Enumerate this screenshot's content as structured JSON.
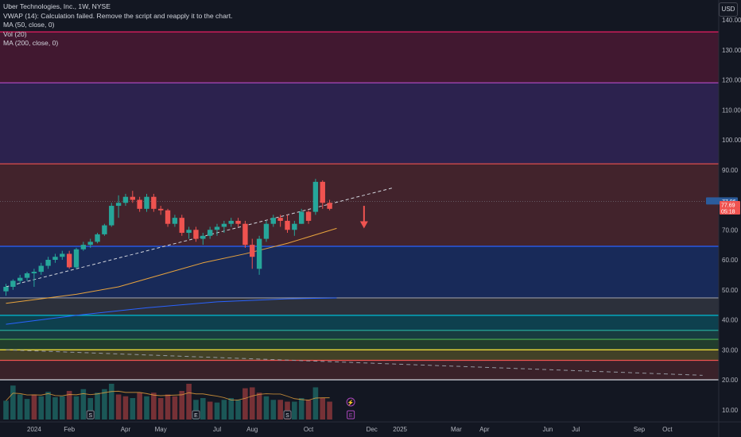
{
  "legend": {
    "symbol_line": "Uber Technologies, Inc., 1W, NYSE",
    "vwap_line": "VWAP (14): Calculation failed. Remove the script and reapply it to the chart.",
    "ma50_line": "MA (50, close, 0)",
    "vol_line": "Vol (20)",
    "ma200_line": "MA (200, close, 0)"
  },
  "currency_button": "USD",
  "colors": {
    "background": "#131722",
    "up": "#26a69a",
    "down": "#ef5350",
    "ma50": "#e8a33d",
    "ma200": "#2962ff",
    "trend": "#d1d4dc"
  },
  "chart_data": {
    "type": "candlestick",
    "y_axis": {
      "min": 5,
      "max": 145,
      "ticks": [
        10,
        20,
        30,
        40,
        50,
        60,
        70,
        80,
        90,
        100,
        110,
        120,
        130,
        140
      ],
      "tick_labels": [
        "10.00",
        "20.00",
        "30.00",
        "40.00",
        "50.00",
        "60.00",
        "70.00",
        "80.00",
        "90.00",
        "100.00",
        "110.00",
        "120.00",
        "130.00",
        "140.00"
      ]
    },
    "x_axis": {
      "labels": [
        "2024",
        "Feb",
        "Apr",
        "May",
        "Jul",
        "Aug",
        "Oct",
        "Dec",
        "2025",
        "Mar",
        "Apr",
        "Jun",
        "Jul",
        "Sep",
        "Oct"
      ],
      "label_week_index": [
        4,
        9,
        17,
        22,
        30,
        35,
        43,
        52,
        56,
        64,
        68,
        77,
        81,
        90,
        94
      ]
    },
    "candles": [
      [
        49.5,
        52,
        48,
        51
      ],
      [
        51,
        53.5,
        50,
        53
      ],
      [
        53,
        55,
        52,
        54
      ],
      [
        54,
        56,
        53,
        55.5
      ],
      [
        55.5,
        57,
        51,
        56
      ],
      [
        56,
        59,
        55,
        58
      ],
      [
        58,
        61,
        57,
        60
      ],
      [
        60,
        62,
        59,
        61
      ],
      [
        61,
        63,
        60,
        62
      ],
      [
        62,
        63,
        57,
        57.5
      ],
      [
        57.5,
        64,
        57,
        63.5
      ],
      [
        63.5,
        66,
        63,
        65
      ],
      [
        65,
        67,
        64,
        66
      ],
      [
        66,
        69,
        65.5,
        68.5
      ],
      [
        68.5,
        72,
        68,
        71.5
      ],
      [
        71.5,
        79,
        71,
        78
      ],
      [
        78,
        81.5,
        74,
        79
      ],
      [
        79,
        82,
        78,
        81
      ],
      [
        81,
        83,
        79,
        80
      ],
      [
        80,
        81,
        76,
        77
      ],
      [
        77,
        82,
        76,
        81
      ],
      [
        81,
        82,
        76,
        77
      ],
      [
        77,
        78,
        75,
        76.5
      ],
      [
        76.5,
        77,
        71,
        72
      ],
      [
        72,
        75,
        71,
        74
      ],
      [
        74,
        75,
        68,
        69
      ],
      [
        69,
        71,
        67,
        70
      ],
      [
        70,
        71,
        66,
        67
      ],
      [
        67,
        69,
        65,
        68
      ],
      [
        68,
        71,
        67,
        70
      ],
      [
        70,
        72,
        68,
        71
      ],
      [
        71,
        73,
        69,
        72
      ],
      [
        72,
        74,
        71,
        73
      ],
      [
        73,
        74,
        71,
        72
      ],
      [
        72,
        73,
        64,
        65
      ],
      [
        65,
        67,
        57,
        61
      ],
      [
        57,
        68,
        55,
        67
      ],
      [
        67,
        73,
        66,
        72
      ],
      [
        72,
        75,
        71,
        74
      ],
      [
        74,
        75,
        71,
        73
      ],
      [
        73,
        75,
        69,
        70
      ],
      [
        70,
        73,
        68,
        72
      ],
      [
        72,
        77,
        72,
        76
      ],
      [
        76,
        76.5,
        72,
        73
      ],
      [
        76,
        87,
        75,
        86
      ],
      [
        86,
        86.5,
        77,
        79
      ],
      [
        79,
        80,
        76.5,
        77
      ]
    ],
    "volume": [
      [
        10.5,
        1
      ],
      [
        19,
        1
      ],
      [
        14,
        1
      ],
      [
        11.5,
        1
      ],
      [
        14,
        0
      ],
      [
        13,
        1
      ],
      [
        15.5,
        1
      ],
      [
        12.5,
        1
      ],
      [
        13,
        1
      ],
      [
        16,
        0
      ],
      [
        13,
        1
      ],
      [
        17,
        1
      ],
      [
        12,
        1
      ],
      [
        15,
        1
      ],
      [
        17,
        1
      ],
      [
        20,
        1
      ],
      [
        14,
        0
      ],
      [
        13,
        0
      ],
      [
        12,
        1
      ],
      [
        15,
        0
      ],
      [
        13,
        1
      ],
      [
        15,
        0
      ],
      [
        12,
        0
      ],
      [
        14,
        0
      ],
      [
        13,
        0
      ],
      [
        16,
        0
      ],
      [
        20,
        0
      ],
      [
        11,
        1
      ],
      [
        12,
        1
      ],
      [
        10,
        0
      ],
      [
        9.5,
        1
      ],
      [
        11,
        1
      ],
      [
        12,
        1
      ],
      [
        11,
        1
      ],
      [
        17.5,
        0
      ],
      [
        18,
        0
      ],
      [
        15,
        0
      ],
      [
        13,
        1
      ],
      [
        11,
        1
      ],
      [
        11,
        0
      ],
      [
        10,
        0
      ],
      [
        10,
        1
      ],
      [
        12,
        1
      ],
      [
        11,
        0
      ],
      [
        18,
        1
      ],
      [
        12,
        0
      ],
      [
        10,
        0
      ]
    ],
    "vol_ma_label": "Vol (20)",
    "ma50": [
      [
        0,
        45.5
      ],
      [
        10,
        48.5
      ],
      [
        16,
        51
      ],
      [
        22,
        55
      ],
      [
        28,
        59
      ],
      [
        34,
        62
      ],
      [
        40,
        65.5
      ],
      [
        47,
        70.5
      ]
    ],
    "ma200": [
      [
        0,
        38.5
      ],
      [
        10,
        41.5
      ],
      [
        20,
        44
      ],
      [
        30,
        46
      ],
      [
        40,
        47
      ],
      [
        47,
        47.3
      ]
    ],
    "trendline": {
      "from": [
        0,
        51
      ],
      "to": [
        55,
        84
      ]
    },
    "down_trend": {
      "from": [
        0,
        30
      ],
      "to": [
        99,
        21.5
      ]
    },
    "horizontal_levels": [
      {
        "price": 136,
        "color": "#e91e63"
      },
      {
        "price": 119,
        "color": "#ab47bc"
      },
      {
        "price": 92,
        "color": "#ef5350"
      },
      {
        "price": 64.5,
        "color": "#2962ff"
      },
      {
        "price": 47.3,
        "color": "#9598a1"
      },
      {
        "price": 41.5,
        "color": "#00bcd4"
      },
      {
        "price": 36.5,
        "color": "#26a69a"
      },
      {
        "price": 33.5,
        "color": "#4caf50"
      },
      {
        "price": 30,
        "color": "#ffeb3b"
      },
      {
        "price": 26.5,
        "color": "#ef5350"
      },
      {
        "price": 20,
        "color": "#d1d4dc"
      }
    ],
    "zones": [
      {
        "top": 136,
        "bottom": 119,
        "color": "#e91e63",
        "opacity": 0.22
      },
      {
        "top": 119,
        "bottom": 92,
        "color": "#673ab7",
        "opacity": 0.3
      },
      {
        "top": 92,
        "bottom": 64.5,
        "color": "#ef5350",
        "opacity": 0.22
      },
      {
        "top": 64.5,
        "bottom": 47.3,
        "color": "#2962ff",
        "opacity": 0.25
      },
      {
        "top": 47.3,
        "bottom": 41.5,
        "color": "#787b86",
        "opacity": 0.25
      },
      {
        "top": 41.5,
        "bottom": 36.5,
        "color": "#00bcd4",
        "opacity": 0.25
      },
      {
        "top": 36.5,
        "bottom": 33.5,
        "color": "#26a69a",
        "opacity": 0.25
      },
      {
        "top": 33.5,
        "bottom": 30,
        "color": "#4caf50",
        "opacity": 0.25
      },
      {
        "top": 30,
        "bottom": 26.5,
        "color": "#ffeb3b",
        "opacity": 0.2
      },
      {
        "top": 26.5,
        "bottom": 20,
        "color": "#ef5350",
        "opacity": 0.18
      }
    ],
    "price_tags": [
      {
        "price": 79.5,
        "text": "77.96",
        "color": "#2b5c9c"
      },
      {
        "price": 76,
        "text": "77.69",
        "color": "#ef5350"
      },
      {
        "price": 74.5,
        "text": "05:18",
        "color": "#ef5350"
      }
    ],
    "arrow_down": {
      "week": 51,
      "from": 78,
      "to": 71,
      "color": "#ef5350"
    },
    "event_markers": [
      {
        "week": 12,
        "kind": "dividend-split",
        "glyph": "S"
      },
      {
        "week": 27,
        "kind": "earnings",
        "glyph": "E"
      },
      {
        "week": 40,
        "kind": "dividend-split",
        "glyph": "S"
      },
      {
        "week": 49,
        "kind": "earnings-future",
        "glyph": "E"
      },
      {
        "week": 49,
        "kind": "flash",
        "glyph": "⚡"
      }
    ]
  }
}
